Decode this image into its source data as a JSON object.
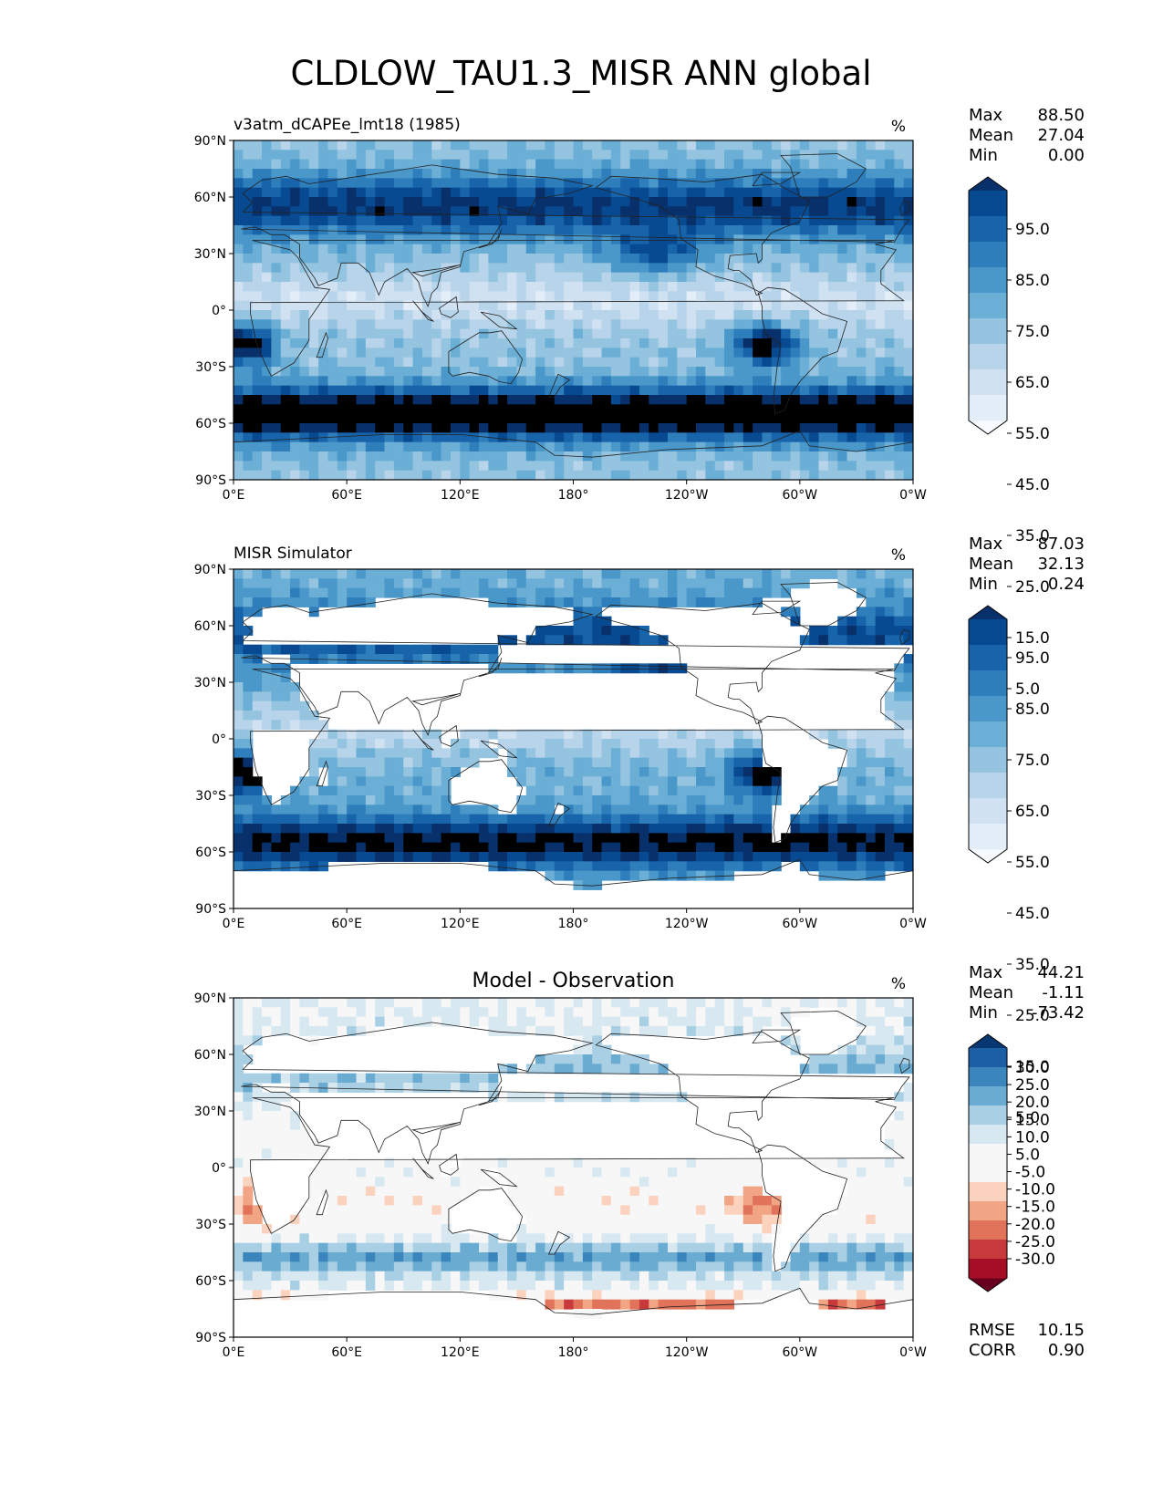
{
  "figure": {
    "title": "CLDLOW_TAU1.3_MISR ANN global"
  },
  "axes": {
    "lat_ticks": [
      "90°N",
      "60°N",
      "30°N",
      "0°",
      "30°S",
      "60°S",
      "90°S"
    ],
    "lon_ticks": [
      "0°E",
      "60°E",
      "120°E",
      "180°",
      "120°W",
      "60°W",
      "0°W"
    ]
  },
  "chart_data": [
    {
      "type": "heatmap",
      "title": "v3atm_dCAPEe_lmt18 (1985)",
      "units": "%",
      "stats": {
        "max_label": "Max",
        "max": "88.50",
        "mean_label": "Mean",
        "mean": "27.04",
        "min_label": "Min",
        "min": "0.00"
      },
      "colorbar": {
        "levels": [
          0,
          5,
          10,
          15,
          20,
          25,
          30,
          35,
          40,
          45,
          50,
          55,
          60,
          65,
          70,
          75,
          80,
          85,
          90,
          95,
          100
        ],
        "tick_labels": [
          "95.0",
          "85.0",
          "75.0",
          "65.0",
          "55.0",
          "45.0",
          "35.0",
          "25.0",
          "15.0",
          "5.0"
        ],
        "colors": [
          "#f7fbff",
          "#e3eef9",
          "#d0e1f2",
          "#b7d4ea",
          "#94c4df",
          "#6baed6",
          "#4a98c9",
          "#2e7ebc",
          "#1764ab",
          "#084a91",
          "#08306b"
        ]
      },
      "field_model": {
        "base": 18,
        "nh_storm": 28,
        "sh_storm": 42,
        "stratocu": 38
      }
    },
    {
      "type": "heatmap",
      "title": "MISR Simulator",
      "units": "%",
      "stats": {
        "max_label": "Max",
        "max": "87.03",
        "mean_label": "Mean",
        "mean": "32.13",
        "min_label": "Min",
        "min": "0.24"
      },
      "colorbar": {
        "levels": [
          0,
          5,
          10,
          15,
          20,
          25,
          30,
          35,
          40,
          45,
          50,
          55,
          60,
          65,
          70,
          75,
          80,
          85,
          90,
          95,
          100
        ],
        "tick_labels": [
          "95.0",
          "85.0",
          "75.0",
          "65.0",
          "55.0",
          "45.0",
          "35.0",
          "25.0",
          "15.0",
          "5.0"
        ],
        "colors": [
          "#f7fbff",
          "#e3eef9",
          "#d0e1f2",
          "#b7d4ea",
          "#94c4df",
          "#6baed6",
          "#4a98c9",
          "#2e7ebc",
          "#1764ab",
          "#084a91",
          "#08306b"
        ]
      },
      "field_model": {
        "base": 22,
        "nh_storm": 20,
        "sh_storm": 30,
        "stratocu": 38
      }
    },
    {
      "type": "heatmap",
      "title": "Model - Observation",
      "units": "%",
      "stats": {
        "max_label": "Max",
        "max": "44.21",
        "mean_label": "Mean",
        "mean": "-1.11",
        "min_label": "Min",
        "min": "-73.42"
      },
      "extra_stats": {
        "rmse_label": "RMSE",
        "rmse": "10.15",
        "corr_label": "CORR",
        "corr": "0.90"
      },
      "colorbar": {
        "levels": [
          -35,
          -30,
          -25,
          -20,
          -15,
          -10,
          -5,
          0,
          5,
          10,
          15,
          20,
          25,
          30,
          35
        ],
        "tick_labels": [
          "30.0",
          "25.0",
          "20.0",
          "15.0",
          "10.0",
          "5.0",
          "-5.0",
          "-10.0",
          "-15.0",
          "-20.0",
          "-25.0",
          "-30.0"
        ],
        "colors": [
          "#67001f",
          "#a50f26",
          "#c8393c",
          "#e0735a",
          "#f2a585",
          "#fbd2be",
          "#f7f7f7",
          "#f7f7f7",
          "#d7e8f1",
          "#a9cfe5",
          "#6aabd1",
          "#3b85bd",
          "#1b5ea4",
          "#063770"
        ]
      }
    }
  ]
}
